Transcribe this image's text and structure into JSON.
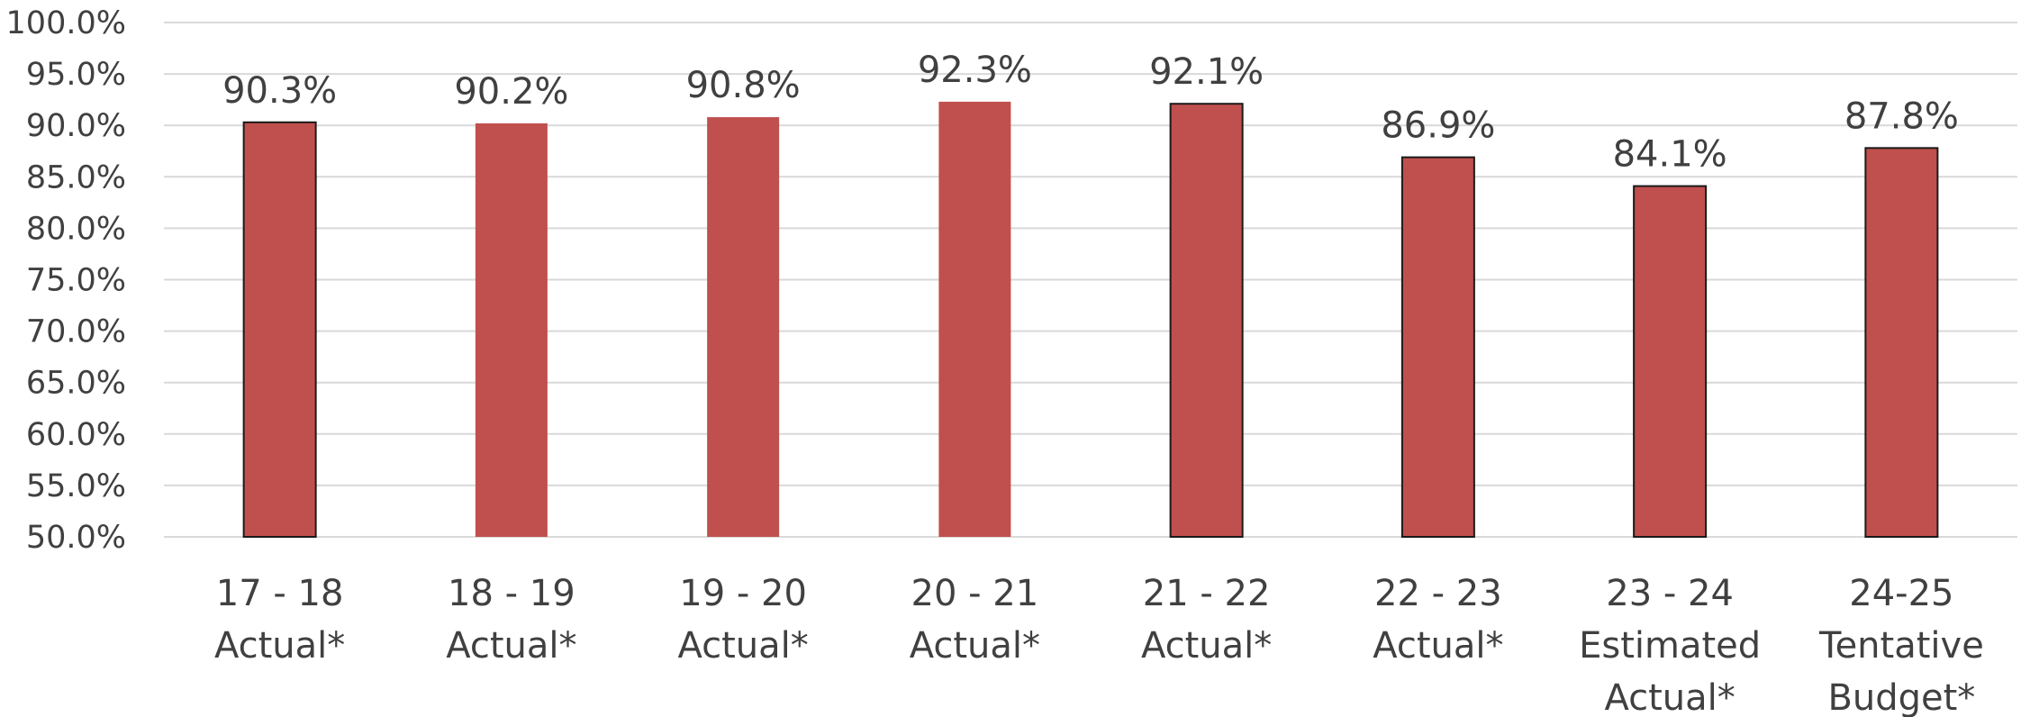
{
  "chart_data": {
    "type": "bar",
    "title": "",
    "xlabel": "",
    "ylabel": "",
    "ylim": [
      50,
      100
    ],
    "yticks": [
      "100.0%",
      "95.0%",
      "90.0%",
      "85.0%",
      "80.0%",
      "75.0%",
      "70.0%",
      "65.0%",
      "60.0%",
      "55.0%",
      "50.0%"
    ],
    "grid": true,
    "legend": "none",
    "categories": [
      [
        "17 - 18",
        "Actual*"
      ],
      [
        "18 - 19",
        "Actual*"
      ],
      [
        "19 - 20",
        "Actual*"
      ],
      [
        "20 - 21",
        "Actual*"
      ],
      [
        "21 - 22",
        "Actual*"
      ],
      [
        "22 - 23",
        "Actual*"
      ],
      [
        "23 - 24",
        "Estimated",
        "Actual*"
      ],
      [
        "24-25",
        "Tentative",
        "Budget*"
      ]
    ],
    "values": [
      90.3,
      90.2,
      90.8,
      92.3,
      92.1,
      86.9,
      84.1,
      87.8
    ],
    "data_labels": [
      "90.3%",
      "90.2%",
      "90.8%",
      "92.3%",
      "92.1%",
      "86.9%",
      "84.1%",
      "87.8%"
    ],
    "bar_outlined": [
      true,
      false,
      false,
      false,
      true,
      true,
      true,
      true
    ],
    "colors": {
      "bar": "#c0504d",
      "bar_outline": "#1a1a1a",
      "grid": "#d9d9d9",
      "text": "#404040"
    }
  }
}
